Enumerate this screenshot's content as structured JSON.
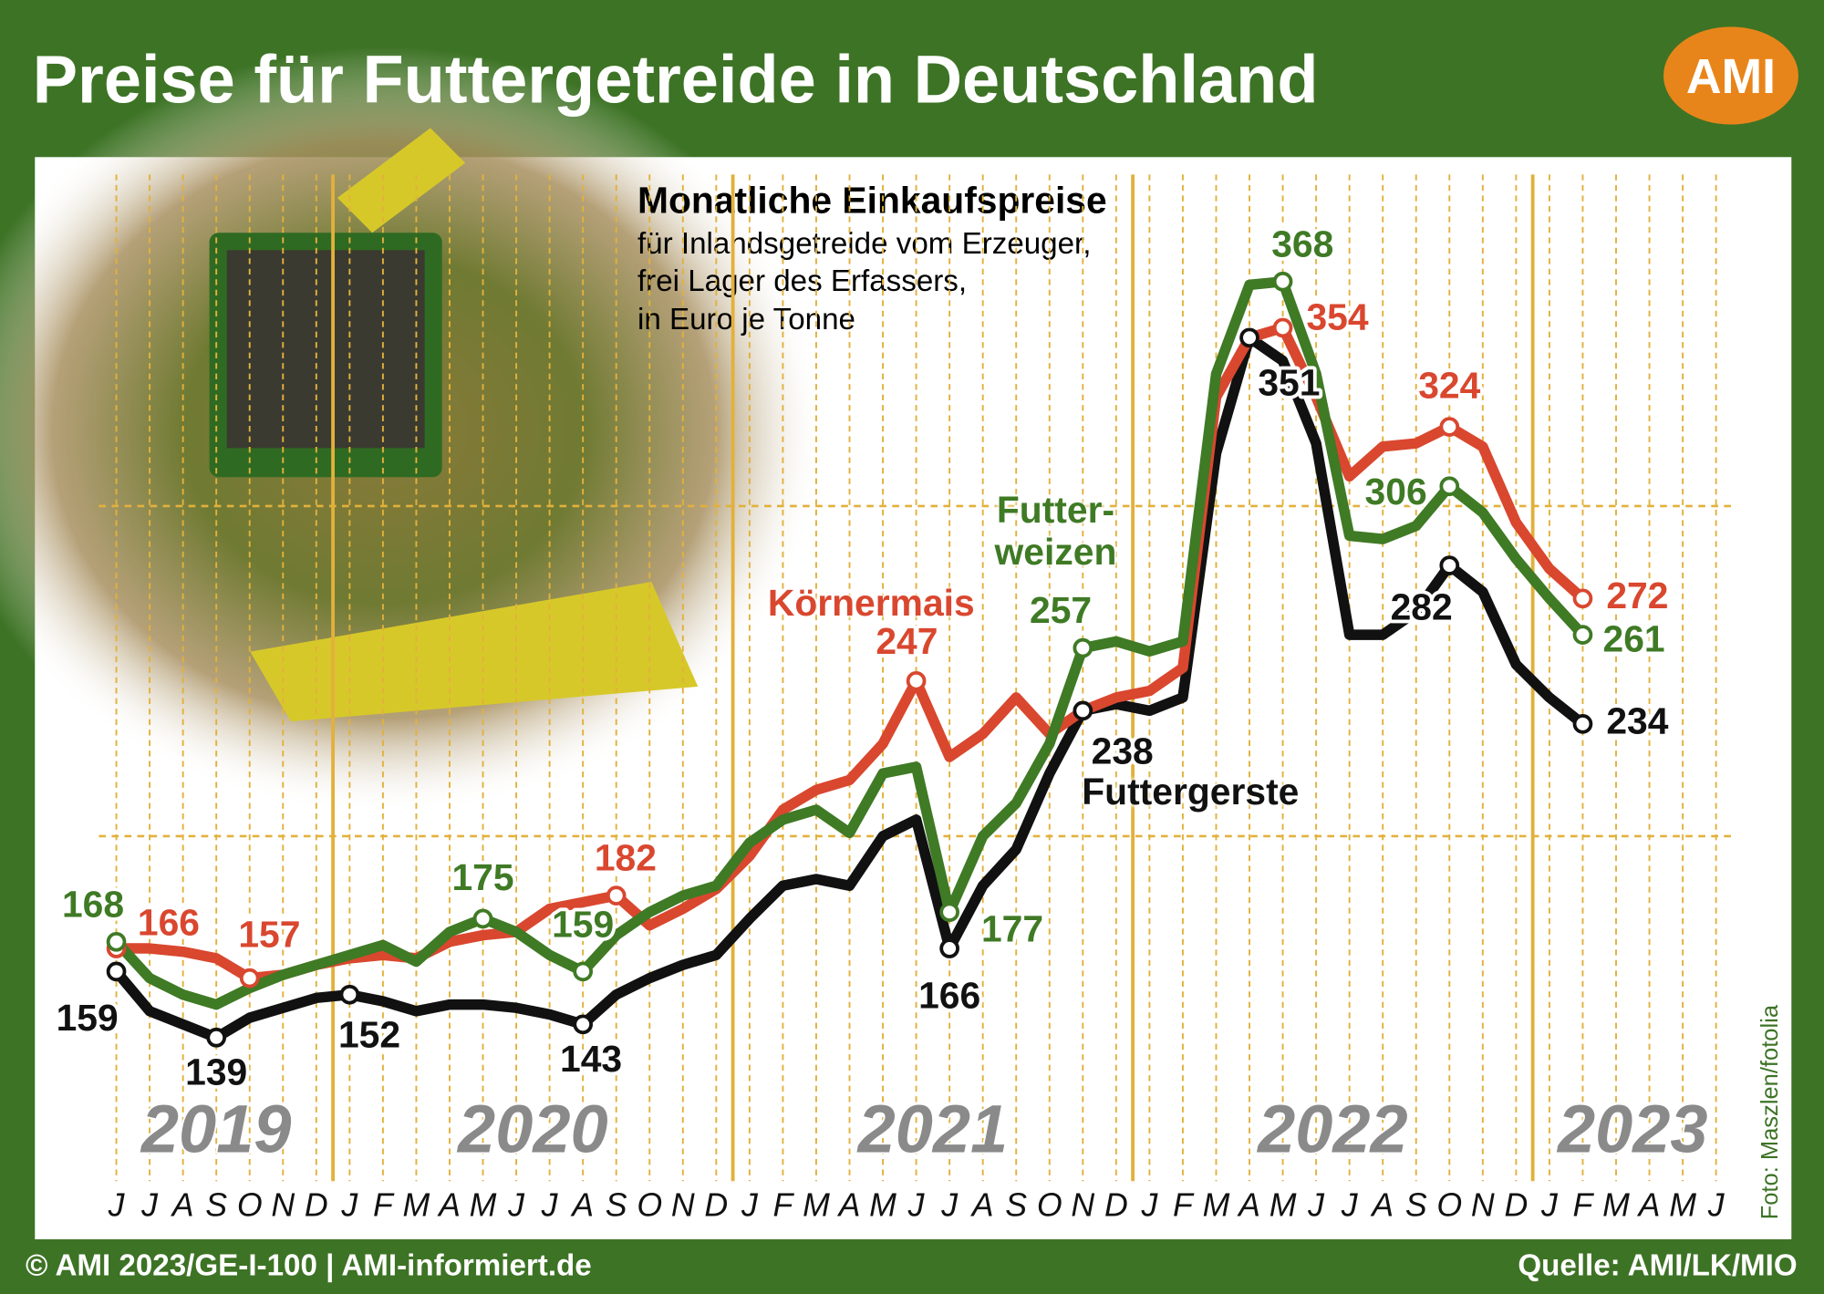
{
  "chart_data": {
    "type": "line",
    "title": "Preise für Futtergetreide in Deutschland",
    "logo": "AMI",
    "subtitle": "Monatliche Einkaufspreise",
    "note": [
      "für Inlandsgetreide vom Erzeuger,",
      "frei Lager des Erfassers,",
      "in Euro je Tonne"
    ],
    "categories": [
      "J",
      "J",
      "A",
      "S",
      "O",
      "N",
      "D",
      "J",
      "F",
      "M",
      "A",
      "M",
      "J",
      "J",
      "A",
      "S",
      "O",
      "N",
      "D",
      "J",
      "F",
      "M",
      "A",
      "M",
      "J",
      "J",
      "A",
      "S",
      "O",
      "N",
      "D",
      "J",
      "F",
      "M",
      "A",
      "M",
      "J",
      "J",
      "A",
      "S",
      "O",
      "N",
      "D",
      "J",
      "F",
      "M",
      "A",
      "M",
      "J"
    ],
    "year_labels": [
      "2019",
      "2020",
      "2021",
      "2022",
      "2023"
    ],
    "series": [
      {
        "name": "Körnermais",
        "color": "#d9472f",
        "values": [
          166,
          166,
          165,
          163,
          157,
          158,
          161,
          163,
          164,
          163,
          168,
          170,
          171,
          178,
          180,
          182,
          173,
          178,
          184,
          194,
          208,
          214,
          217,
          228,
          247,
          224,
          231,
          242,
          231,
          238,
          242,
          244,
          251,
          333,
          351,
          354,
          333,
          309,
          318,
          319,
          324,
          318,
          295,
          281,
          272,
          null,
          null,
          null,
          null
        ],
        "labeled": [
          0,
          4,
          15,
          24,
          35,
          40,
          44
        ]
      },
      {
        "name": "Futter-\nweizen",
        "color": "#3f7a25",
        "values": [
          168,
          157,
          152,
          149,
          154,
          158,
          161,
          164,
          167,
          162,
          171,
          175,
          171,
          164,
          159,
          170,
          177,
          182,
          185,
          198,
          205,
          208,
          201,
          219,
          221,
          177,
          200,
          210,
          228,
          257,
          259,
          256,
          259,
          340,
          367,
          368,
          340,
          291,
          290,
          294,
          306,
          298,
          284,
          272,
          261,
          null,
          null,
          null,
          null
        ],
        "labeled": [
          0,
          11,
          14,
          25,
          29,
          35,
          40,
          44
        ]
      },
      {
        "name": "Futtergerste",
        "color": "#111111",
        "values": [
          159,
          147,
          143,
          139,
          145,
          148,
          151,
          152,
          150,
          147,
          149,
          149,
          148,
          146,
          143,
          152,
          157,
          161,
          164,
          175,
          185,
          187,
          185,
          200,
          205,
          166,
          185,
          196,
          219,
          238,
          240,
          238,
          242,
          316,
          351,
          344,
          319,
          261,
          261,
          268,
          282,
          274,
          252,
          242,
          234,
          null,
          null,
          null,
          null
        ],
        "labeled": [
          0,
          3,
          7,
          14,
          25,
          29,
          34,
          40,
          44
        ]
      }
    ],
    "ylim": [
      80,
      405
    ],
    "yticks": [
      200,
      300
    ],
    "grid": true,
    "footer_left": "© AMI 2023/GE-I-100 | AMI-informiert.de",
    "footer_right": "Quelle: AMI/LK/MIO",
    "photo_credit": "Foto: Maszlen/fotolia"
  }
}
